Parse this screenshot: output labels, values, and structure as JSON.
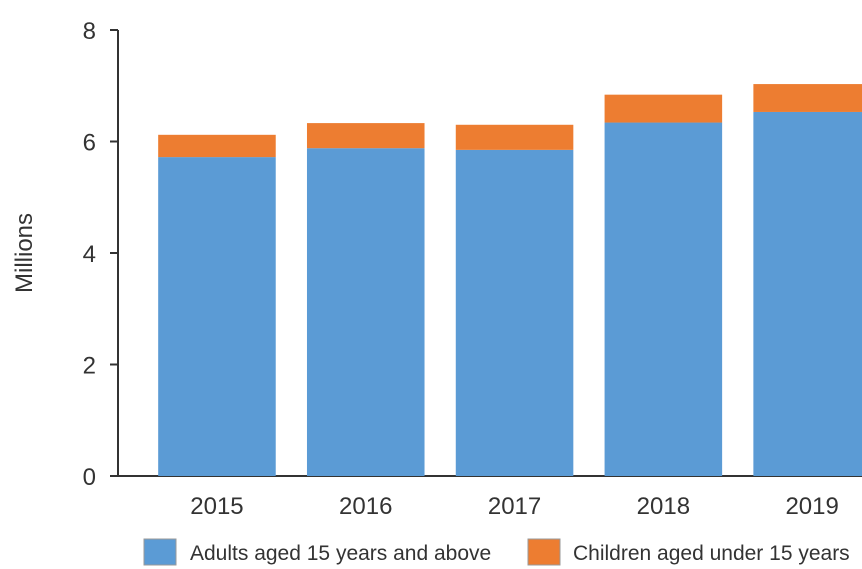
{
  "chart_data": {
    "type": "bar",
    "stacked": true,
    "title": "",
    "xlabel": "",
    "ylabel": "Millions",
    "ylim": [
      0,
      8
    ],
    "yticks": [
      0,
      2,
      4,
      6,
      8
    ],
    "categories": [
      "2015",
      "2016",
      "2017",
      "2018",
      "2019"
    ],
    "series": [
      {
        "name": "Adults aged 15 years and above",
        "color": "#5b9bd5",
        "values": [
          5.72,
          5.88,
          5.85,
          6.34,
          6.53
        ]
      },
      {
        "name": "Children aged under 15 years",
        "color": "#ed7d31",
        "values": [
          0.4,
          0.45,
          0.45,
          0.5,
          0.5
        ]
      }
    ],
    "grid": false,
    "legend_position": "bottom"
  }
}
